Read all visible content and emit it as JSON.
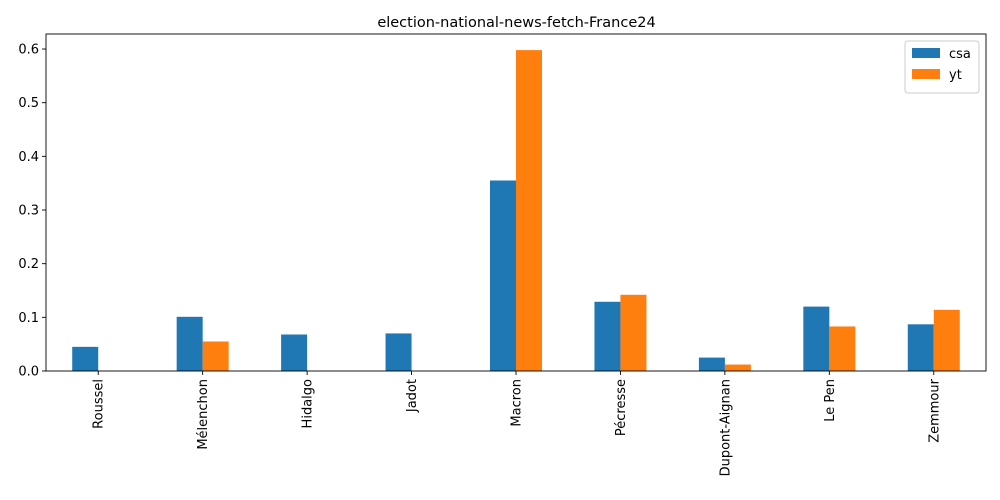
{
  "chart_data": {
    "type": "bar",
    "title": "election-national-news-fetch-France24",
    "xlabel": "",
    "ylabel": "",
    "categories": [
      "Roussel",
      "Mélenchon",
      "Hidalgo",
      "Jadot",
      "Macron",
      "Pécresse",
      "Dupont-Aignan",
      "Le Pen",
      "Zemmour"
    ],
    "series": [
      {
        "name": "csa",
        "color": "#1f77b4",
        "values": [
          0.045,
          0.101,
          0.068,
          0.07,
          0.355,
          0.129,
          0.025,
          0.12,
          0.087
        ]
      },
      {
        "name": "yt",
        "color": "#ff7f0e",
        "values": [
          0.0,
          0.055,
          0.0,
          0.0,
          0.598,
          0.142,
          0.012,
          0.083,
          0.114
        ]
      }
    ],
    "ylim": [
      0,
      0.628
    ],
    "yticks": [
      "0.0",
      "0.1",
      "0.2",
      "0.3",
      "0.4",
      "0.5",
      "0.6"
    ],
    "grid": false,
    "legend_position": "top-right"
  }
}
